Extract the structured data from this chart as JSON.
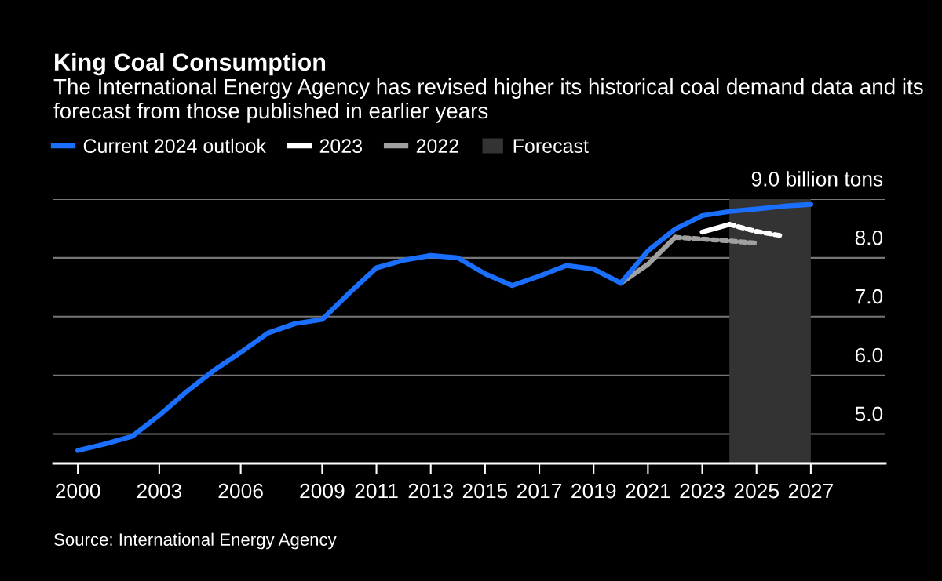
{
  "chart_data": {
    "type": "line",
    "title": "King Coal Consumption",
    "subtitle": "The International Energy Agency has revised higher its historical coal demand data and its forecast from those published in earlier years",
    "series": [
      {
        "name": "Current 2024 outlook",
        "color": "#1a6fff",
        "line_style": "solid",
        "x": [
          2000,
          2001,
          2002,
          2003,
          2004,
          2005,
          2006,
          2007,
          2008,
          2009,
          2010,
          2011,
          2012,
          2013,
          2014,
          2015,
          2016,
          2017,
          2018,
          2019,
          2020,
          2021,
          2022,
          2023,
          2024,
          2025,
          2026,
          2027
        ],
        "values": [
          4.72,
          4.83,
          4.96,
          5.32,
          5.72,
          6.08,
          6.39,
          6.72,
          6.88,
          6.95,
          7.4,
          7.83,
          7.96,
          8.04,
          8.0,
          7.73,
          7.53,
          7.69,
          7.87,
          7.81,
          7.57,
          8.12,
          8.49,
          8.72,
          8.79,
          8.83,
          8.88,
          8.91
        ]
      },
      {
        "name": "2023",
        "color": "#ffffff",
        "line_style": "solid",
        "x": [
          2023,
          2024
        ],
        "values": [
          8.44,
          8.57
        ]
      },
      {
        "color": "#ffffff",
        "line_style": "dashed",
        "x": [
          2024,
          2025,
          2026
        ],
        "values": [
          8.57,
          8.45,
          8.37
        ]
      },
      {
        "name": "2022",
        "color": "#a0a0a0",
        "line_style": "solid",
        "x": [
          2020,
          2021,
          2022
        ],
        "values": [
          7.57,
          7.89,
          8.35
        ]
      },
      {
        "color": "#a0a0a0",
        "line_style": "dashed",
        "x": [
          2022,
          2023,
          2024,
          2025
        ],
        "values": [
          8.35,
          8.32,
          8.29,
          8.25
        ]
      }
    ],
    "bands": [
      {
        "axis": "x",
        "from": 2024,
        "to": 2027,
        "label": "Forecast",
        "color": "#333333"
      }
    ],
    "xlim": [
      1999.1,
      2029.75
    ],
    "xticks": [
      2000,
      2003,
      2006,
      2009,
      2011,
      2013,
      2015,
      2017,
      2019,
      2021,
      2023,
      2025,
      2027
    ],
    "ylim": [
      4.5,
      9.0
    ],
    "yticks": [
      {
        "value": 5,
        "label": "5.0"
      },
      {
        "value": 6,
        "label": "6.0"
      },
      {
        "value": 7,
        "label": "7.0"
      },
      {
        "value": 8,
        "label": "8.0"
      },
      {
        "value": 9,
        "label": "9.0 billion tons"
      }
    ],
    "grid": "y",
    "legend": "top left",
    "marker": "none",
    "annotations": [
      "Source: International Energy Agency"
    ]
  }
}
